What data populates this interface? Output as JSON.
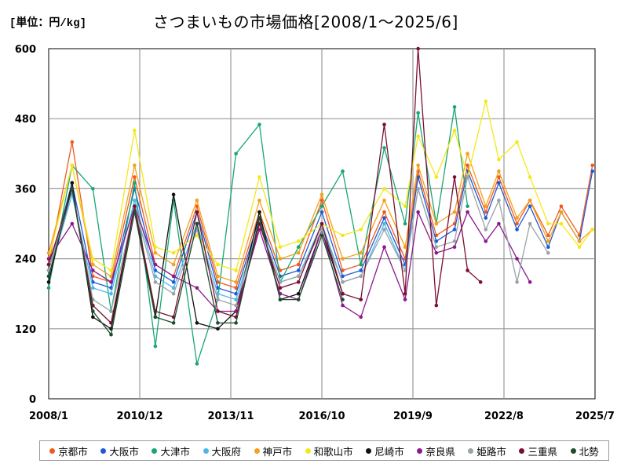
{
  "unit_label": "[単位：円/kg]",
  "chart_data": {
    "type": "line",
    "title": "さつまいもの市場価格[2008/1～2025/6]",
    "ylabel": "",
    "xlabel": "",
    "ylim": [
      0,
      600
    ],
    "y_ticks": [
      "0",
      "120",
      "240",
      "360",
      "480",
      "600"
    ],
    "x_range": [
      "2008/1",
      "2025/7"
    ],
    "x_ticks": [
      "2008/1",
      "2010/12",
      "2013/11",
      "2016/10",
      "2019/9",
      "2022/8",
      "2025/7"
    ],
    "grid": true,
    "legend_position": "bottom",
    "series": [
      {
        "name": "京都市",
        "color": "#f05a1e",
        "points": [
          [
            "2008/1",
            230
          ],
          [
            "2008/10",
            440
          ],
          [
            "2009/6",
            210
          ],
          [
            "2010/1",
            200
          ],
          [
            "2010/10",
            380
          ],
          [
            "2011/6",
            230
          ],
          [
            "2012/1",
            210
          ],
          [
            "2012/10",
            330
          ],
          [
            "2013/6",
            200
          ],
          [
            "2014/1",
            190
          ],
          [
            "2014/10",
            320
          ],
          [
            "2015/6",
            220
          ],
          [
            "2016/1",
            230
          ],
          [
            "2016/10",
            340
          ],
          [
            "2017/6",
            220
          ],
          [
            "2018/1",
            230
          ],
          [
            "2018/10",
            320
          ],
          [
            "2019/6",
            240
          ],
          [
            "2019/11",
            390
          ],
          [
            "2020/6",
            280
          ],
          [
            "2021/1",
            300
          ],
          [
            "2021/6",
            400
          ],
          [
            "2022/1",
            320
          ],
          [
            "2022/6",
            380
          ],
          [
            "2023/1",
            300
          ],
          [
            "2023/6",
            340
          ],
          [
            "2024/1",
            280
          ],
          [
            "2024/6",
            330
          ],
          [
            "2025/1",
            280
          ],
          [
            "2025/6",
            400
          ]
        ]
      },
      {
        "name": "大阪市",
        "color": "#1f5ad6",
        "points": [
          [
            "2008/1",
            220
          ],
          [
            "2008/10",
            370
          ],
          [
            "2009/6",
            200
          ],
          [
            "2010/1",
            190
          ],
          [
            "2010/10",
            360
          ],
          [
            "2011/6",
            220
          ],
          [
            "2012/1",
            200
          ],
          [
            "2012/10",
            320
          ],
          [
            "2013/6",
            190
          ],
          [
            "2014/1",
            180
          ],
          [
            "2014/10",
            310
          ],
          [
            "2015/6",
            210
          ],
          [
            "2016/1",
            220
          ],
          [
            "2016/10",
            320
          ],
          [
            "2017/6",
            210
          ],
          [
            "2018/1",
            220
          ],
          [
            "2018/10",
            310
          ],
          [
            "2019/6",
            230
          ],
          [
            "2019/11",
            380
          ],
          [
            "2020/6",
            270
          ],
          [
            "2021/1",
            290
          ],
          [
            "2021/6",
            390
          ],
          [
            "2022/1",
            310
          ],
          [
            "2022/6",
            370
          ],
          [
            "2023/1",
            290
          ],
          [
            "2023/6",
            330
          ],
          [
            "2024/1",
            260
          ],
          [
            "2024/6",
            320
          ],
          [
            "2025/1",
            270
          ],
          [
            "2025/6",
            390
          ]
        ]
      },
      {
        "name": "大津市",
        "color": "#17a774",
        "points": [
          [
            "2008/1",
            190
          ],
          [
            "2008/10",
            400
          ],
          [
            "2009/6",
            360
          ],
          [
            "2010/1",
            150
          ],
          [
            "2010/10",
            370
          ],
          [
            "2011/6",
            90
          ],
          [
            "2012/1",
            340
          ],
          [
            "2012/10",
            60
          ],
          [
            "2013/6",
            170
          ],
          [
            "2014/1",
            420
          ],
          [
            "2014/10",
            470
          ],
          [
            "2015/6",
            200
          ],
          [
            "2016/1",
            260
          ],
          [
            "2016/10",
            330
          ],
          [
            "2017/6",
            390
          ],
          [
            "2018/1",
            230
          ],
          [
            "2018/10",
            430
          ],
          [
            "2019/6",
            300
          ],
          [
            "2019/11",
            490
          ],
          [
            "2020/6",
            300
          ],
          [
            "2021/1",
            500
          ],
          [
            "2021/6",
            330
          ]
        ]
      },
      {
        "name": "大阪府",
        "color": "#4fb6ea",
        "points": [
          [
            "2008/1",
            210
          ],
          [
            "2008/10",
            350
          ],
          [
            "2009/6",
            190
          ],
          [
            "2010/1",
            180
          ],
          [
            "2010/10",
            340
          ],
          [
            "2011/6",
            210
          ],
          [
            "2012/1",
            190
          ],
          [
            "2012/10",
            300
          ],
          [
            "2013/6",
            180
          ],
          [
            "2014/1",
            170
          ],
          [
            "2014/10",
            300
          ],
          [
            "2015/6",
            200
          ],
          [
            "2016/1",
            210
          ],
          [
            "2016/10",
            300
          ],
          [
            "2017/6",
            200
          ],
          [
            "2018/1",
            210
          ],
          [
            "2018/10",
            300
          ],
          [
            "2019/6",
            220
          ],
          [
            "2019/11",
            360
          ],
          [
            "2020/6",
            260
          ]
        ]
      },
      {
        "name": "神戸市",
        "color": "#f3a21b",
        "points": [
          [
            "2008/1",
            250
          ],
          [
            "2008/10",
            400
          ],
          [
            "2009/6",
            230
          ],
          [
            "2010/1",
            210
          ],
          [
            "2010/10",
            400
          ],
          [
            "2011/6",
            250
          ],
          [
            "2012/1",
            230
          ],
          [
            "2012/10",
            340
          ],
          [
            "2013/6",
            210
          ],
          [
            "2014/1",
            200
          ],
          [
            "2014/10",
            340
          ],
          [
            "2015/6",
            240
          ],
          [
            "2016/1",
            250
          ],
          [
            "2016/10",
            350
          ],
          [
            "2017/6",
            240
          ],
          [
            "2018/1",
            250
          ],
          [
            "2018/10",
            340
          ],
          [
            "2019/6",
            260
          ],
          [
            "2019/11",
            400
          ],
          [
            "2020/6",
            300
          ],
          [
            "2021/1",
            320
          ],
          [
            "2021/6",
            420
          ],
          [
            "2022/1",
            330
          ],
          [
            "2022/6",
            390
          ],
          [
            "2023/1",
            310
          ],
          [
            "2023/6",
            340
          ],
          [
            "2024/1",
            270
          ],
          [
            "2024/6",
            320
          ],
          [
            "2025/1",
            270
          ],
          [
            "2025/6",
            290
          ]
        ]
      },
      {
        "name": "和歌山市",
        "color": "#f4e81a",
        "points": [
          [
            "2008/1",
            240
          ],
          [
            "2008/10",
            400
          ],
          [
            "2009/6",
            240
          ],
          [
            "2010/1",
            220
          ],
          [
            "2010/10",
            460
          ],
          [
            "2011/6",
            260
          ],
          [
            "2012/1",
            250
          ],
          [
            "2012/10",
            280
          ],
          [
            "2013/6",
            230
          ],
          [
            "2014/1",
            220
          ],
          [
            "2014/10",
            380
          ],
          [
            "2015/6",
            260
          ],
          [
            "2016/1",
            270
          ],
          [
            "2016/10",
            300
          ],
          [
            "2017/6",
            280
          ],
          [
            "2018/1",
            290
          ],
          [
            "2018/10",
            360
          ],
          [
            "2019/6",
            330
          ],
          [
            "2019/11",
            450
          ],
          [
            "2020/6",
            380
          ],
          [
            "2021/1",
            460
          ],
          [
            "2021/6",
            380
          ],
          [
            "2022/1",
            510
          ],
          [
            "2022/6",
            410
          ],
          [
            "2023/1",
            440
          ],
          [
            "2023/6",
            380
          ],
          [
            "2024/1",
            300
          ],
          [
            "2024/6",
            300
          ],
          [
            "2025/1",
            260
          ],
          [
            "2025/6",
            290
          ]
        ]
      },
      {
        "name": "尼崎市",
        "color": "#111111",
        "points": [
          [
            "2008/1",
            200
          ],
          [
            "2008/10",
            370
          ],
          [
            "2009/6",
            140
          ],
          [
            "2010/1",
            120
          ],
          [
            "2010/10",
            330
          ],
          [
            "2011/6",
            140
          ],
          [
            "2012/1",
            350
          ],
          [
            "2012/10",
            130
          ],
          [
            "2013/6",
            120
          ],
          [
            "2014/1",
            150
          ],
          [
            "2014/10",
            320
          ],
          [
            "2015/6",
            170
          ],
          [
            "2016/1",
            180
          ],
          [
            "2016/10",
            290
          ],
          [
            "2017/6",
            180
          ]
        ]
      },
      {
        "name": "奈良県",
        "color": "#8b1a8b",
        "points": [
          [
            "2008/1",
            240
          ],
          [
            "2008/10",
            300
          ],
          [
            "2009/6",
            220
          ],
          [
            "2010/1",
            200
          ],
          [
            "2010/10",
            330
          ],
          [
            "2011/6",
            230
          ],
          [
            "2012/1",
            210
          ],
          [
            "2012/10",
            190
          ],
          [
            "2013/6",
            150
          ],
          [
            "2014/1",
            150
          ],
          [
            "2014/10",
            290
          ],
          [
            "2015/6",
            180
          ],
          [
            "2016/1",
            170
          ],
          [
            "2016/10",
            290
          ],
          [
            "2017/6",
            160
          ],
          [
            "2018/1",
            140
          ],
          [
            "2018/10",
            260
          ],
          [
            "2019/6",
            170
          ],
          [
            "2019/11",
            320
          ],
          [
            "2020/6",
            250
          ],
          [
            "2021/1",
            260
          ],
          [
            "2021/6",
            320
          ],
          [
            "2022/1",
            270
          ],
          [
            "2022/6",
            300
          ],
          [
            "2023/1",
            240
          ],
          [
            "2023/6",
            200
          ]
        ]
      },
      {
        "name": "姫路市",
        "color": "#9aa3a8",
        "points": [
          [
            "2008/1",
            220
          ],
          [
            "2008/10",
            360
          ],
          [
            "2009/6",
            170
          ],
          [
            "2010/1",
            150
          ],
          [
            "2010/10",
            330
          ],
          [
            "2011/6",
            200
          ],
          [
            "2012/1",
            180
          ],
          [
            "2012/10",
            290
          ],
          [
            "2013/6",
            170
          ],
          [
            "2014/1",
            160
          ],
          [
            "2014/10",
            300
          ],
          [
            "2015/6",
            200
          ],
          [
            "2016/1",
            210
          ],
          [
            "2016/10",
            290
          ],
          [
            "2017/6",
            200
          ],
          [
            "2018/1",
            210
          ],
          [
            "2018/10",
            290
          ],
          [
            "2019/6",
            220
          ],
          [
            "2019/11",
            360
          ],
          [
            "2020/6",
            260
          ],
          [
            "2021/1",
            270
          ],
          [
            "2021/6",
            380
          ],
          [
            "2022/1",
            290
          ],
          [
            "2022/6",
            340
          ],
          [
            "2023/1",
            200
          ],
          [
            "2023/6",
            300
          ],
          [
            "2024/1",
            250
          ]
        ]
      },
      {
        "name": "三重県",
        "color": "#7a1030",
        "points": [
          [
            "2008/1",
            230
          ],
          [
            "2008/10",
            360
          ],
          [
            "2009/6",
            160
          ],
          [
            "2010/1",
            130
          ],
          [
            "2010/10",
            330
          ],
          [
            "2011/6",
            150
          ],
          [
            "2012/1",
            140
          ],
          [
            "2012/10",
            320
          ],
          [
            "2013/6",
            150
          ],
          [
            "2014/1",
            140
          ],
          [
            "2014/10",
            300
          ],
          [
            "2015/6",
            190
          ],
          [
            "2016/1",
            200
          ],
          [
            "2016/10",
            300
          ],
          [
            "2017/6",
            180
          ],
          [
            "2018/1",
            170
          ],
          [
            "2018/10",
            470
          ],
          [
            "2019/6",
            180
          ],
          [
            "2019/11",
            600
          ],
          [
            "2020/6",
            160
          ],
          [
            "2021/1",
            380
          ],
          [
            "2021/6",
            220
          ],
          [
            "2021/11",
            200
          ]
        ]
      },
      {
        "name": "北勢",
        "color": "#1b4d2e",
        "points": [
          [
            "2008/1",
            210
          ],
          [
            "2008/10",
            360
          ],
          [
            "2009/6",
            150
          ],
          [
            "2010/1",
            110
          ],
          [
            "2010/10",
            320
          ],
          [
            "2011/6",
            140
          ],
          [
            "2012/1",
            130
          ],
          [
            "2012/10",
            300
          ],
          [
            "2013/6",
            130
          ],
          [
            "2014/1",
            130
          ],
          [
            "2014/10",
            310
          ],
          [
            "2015/6",
            170
          ],
          [
            "2016/1",
            170
          ],
          [
            "2016/10",
            280
          ],
          [
            "2017/6",
            170
          ]
        ]
      }
    ]
  }
}
